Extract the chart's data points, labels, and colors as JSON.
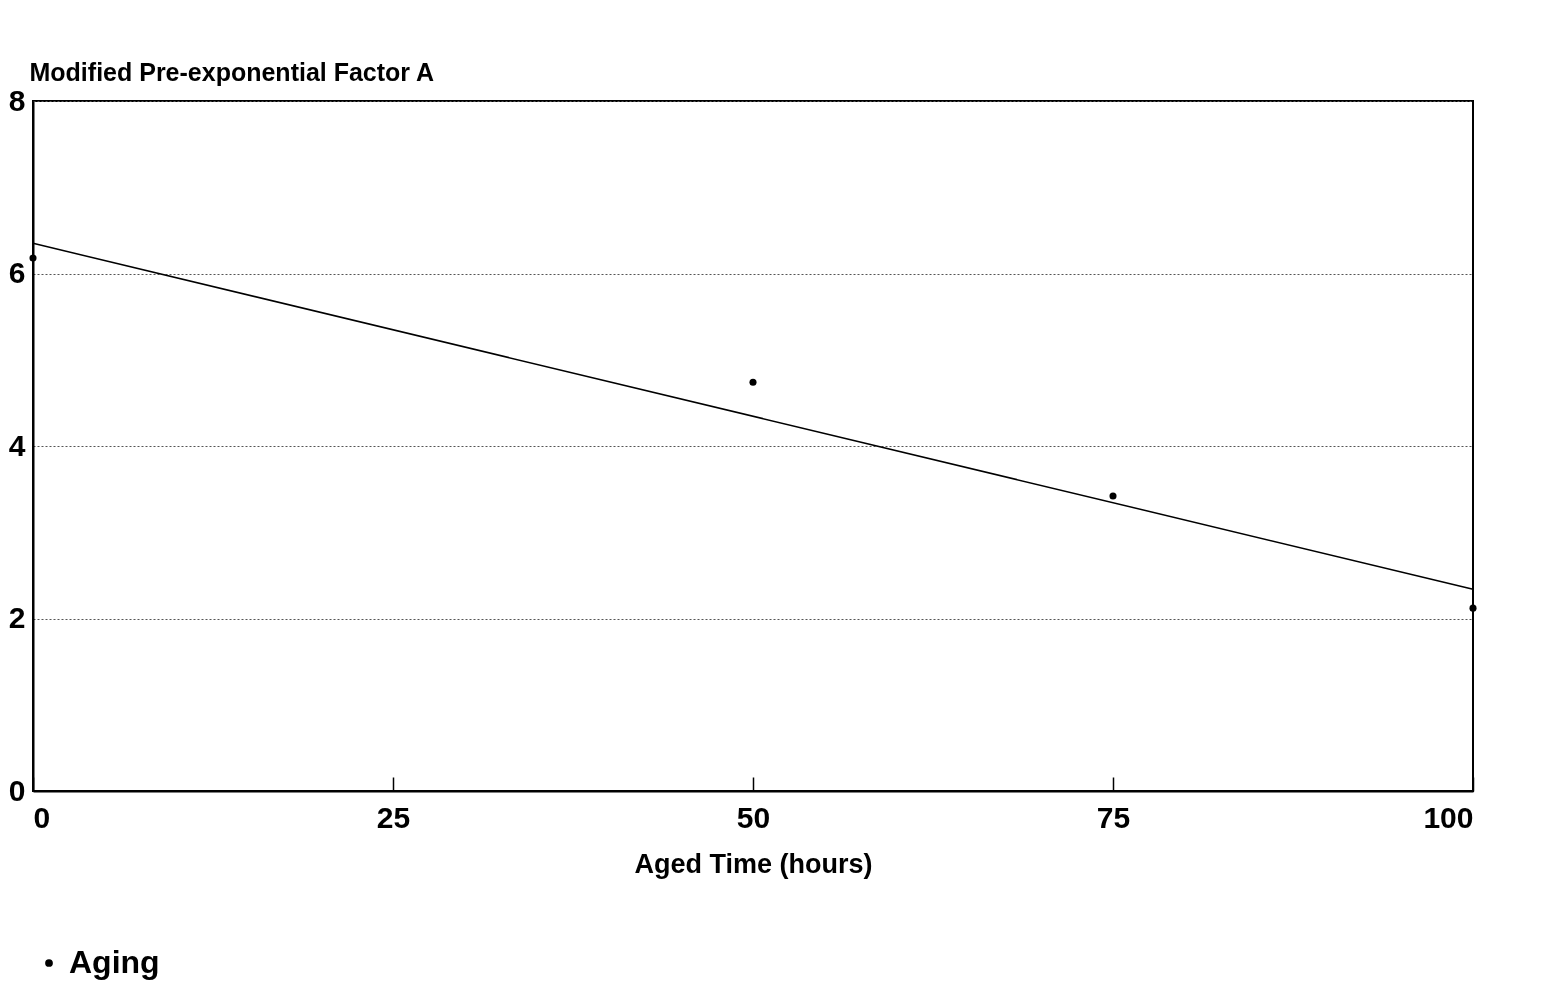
{
  "chart_data": {
    "type": "scatter",
    "ylabel": "Modified Pre-exponential Factor A",
    "xlabel": "Aged Time (hours)",
    "xlim": [
      0,
      100
    ],
    "xticks": [
      0,
      25,
      50,
      75,
      100
    ],
    "ylim": [
      0,
      8
    ],
    "yticks": [
      0,
      2,
      4,
      6,
      8
    ],
    "grid": "y",
    "legend": "bottom",
    "series": [
      {
        "name": "Aging",
        "marker": "circle",
        "color": "#000000",
        "x": [
          0,
          50,
          75,
          100
        ],
        "values": [
          6.18,
          4.74,
          3.42,
          2.12
        ]
      },
      {
        "type": "line",
        "color": "#000000",
        "x": [
          0,
          100
        ],
        "values": [
          6.35,
          2.34
        ]
      }
    ]
  }
}
